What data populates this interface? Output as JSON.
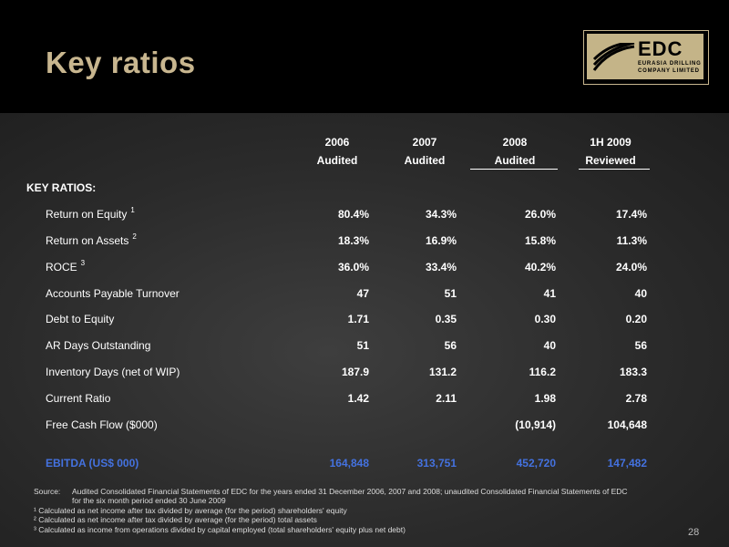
{
  "slide": {
    "title": "Key ratios",
    "page_number": "28"
  },
  "logo": {
    "name": "EDC",
    "line1": "EURASIA DRILLING",
    "line2": "COMPANY LIMITED"
  },
  "table": {
    "years": [
      "2006",
      "2007",
      "2008",
      "1H 2009"
    ],
    "status": [
      "Audited",
      "Audited",
      "Audited",
      "Reviewed"
    ],
    "section_title": "KEY RATIOS:",
    "rows": [
      {
        "label": "Return on Equity",
        "sup": "1",
        "values": [
          "80.4%",
          "34.3%",
          "26.0%",
          "17.4%"
        ]
      },
      {
        "label": "Return on Assets",
        "sup": "2",
        "values": [
          "18.3%",
          "16.9%",
          "15.8%",
          "11.3%"
        ]
      },
      {
        "label": "ROCE",
        "sup": "3",
        "values": [
          "36.0%",
          "33.4%",
          "40.2%",
          "24.0%"
        ]
      },
      {
        "label": "Accounts Payable Turnover",
        "sup": "",
        "values": [
          "47",
          "51",
          "41",
          "40"
        ]
      },
      {
        "label": "Debt to Equity",
        "sup": "",
        "values": [
          "1.71",
          "0.35",
          "0.30",
          "0.20"
        ]
      },
      {
        "label": "AR Days Outstanding",
        "sup": "",
        "values": [
          "51",
          "56",
          "40",
          "56"
        ]
      },
      {
        "label": "Inventory Days (net of WIP)",
        "sup": "",
        "values": [
          "187.9",
          "131.2",
          "116.2",
          "183.3"
        ]
      },
      {
        "label": "Current Ratio",
        "sup": "",
        "values": [
          "1.42",
          "2.11",
          "1.98",
          "2.78"
        ]
      },
      {
        "label": "Free Cash Flow ($000)",
        "sup": "",
        "values": [
          "",
          "",
          "(10,914)",
          "104,648"
        ]
      }
    ],
    "ebitda": {
      "label": "EBITDA (US$ 000)",
      "values": [
        "164,848",
        "313,751",
        "452,720",
        "147,482"
      ]
    }
  },
  "notes": {
    "source_label": "Source:",
    "source_text_1": "Audited Consolidated Financial Statements of EDC for the years ended 31 December 2006, 2007 and 2008; unaudited Consolidated Financial Statements of EDC",
    "source_text_2": "for the six month period ended 30 June 2009",
    "footnotes": [
      "¹ Calculated as net income after tax divided by average (for the period) shareholders' equity",
      "² Calculated as net income after tax divided by average (for the period) total assets",
      "³ Calculated as income from operations divided by capital employed (total shareholders' equity plus net debt)"
    ]
  },
  "colors": {
    "title": "#c8b68f",
    "logo_bg": "#c4b488",
    "ebitda": "#4472e0",
    "header_bg": "#000000"
  }
}
